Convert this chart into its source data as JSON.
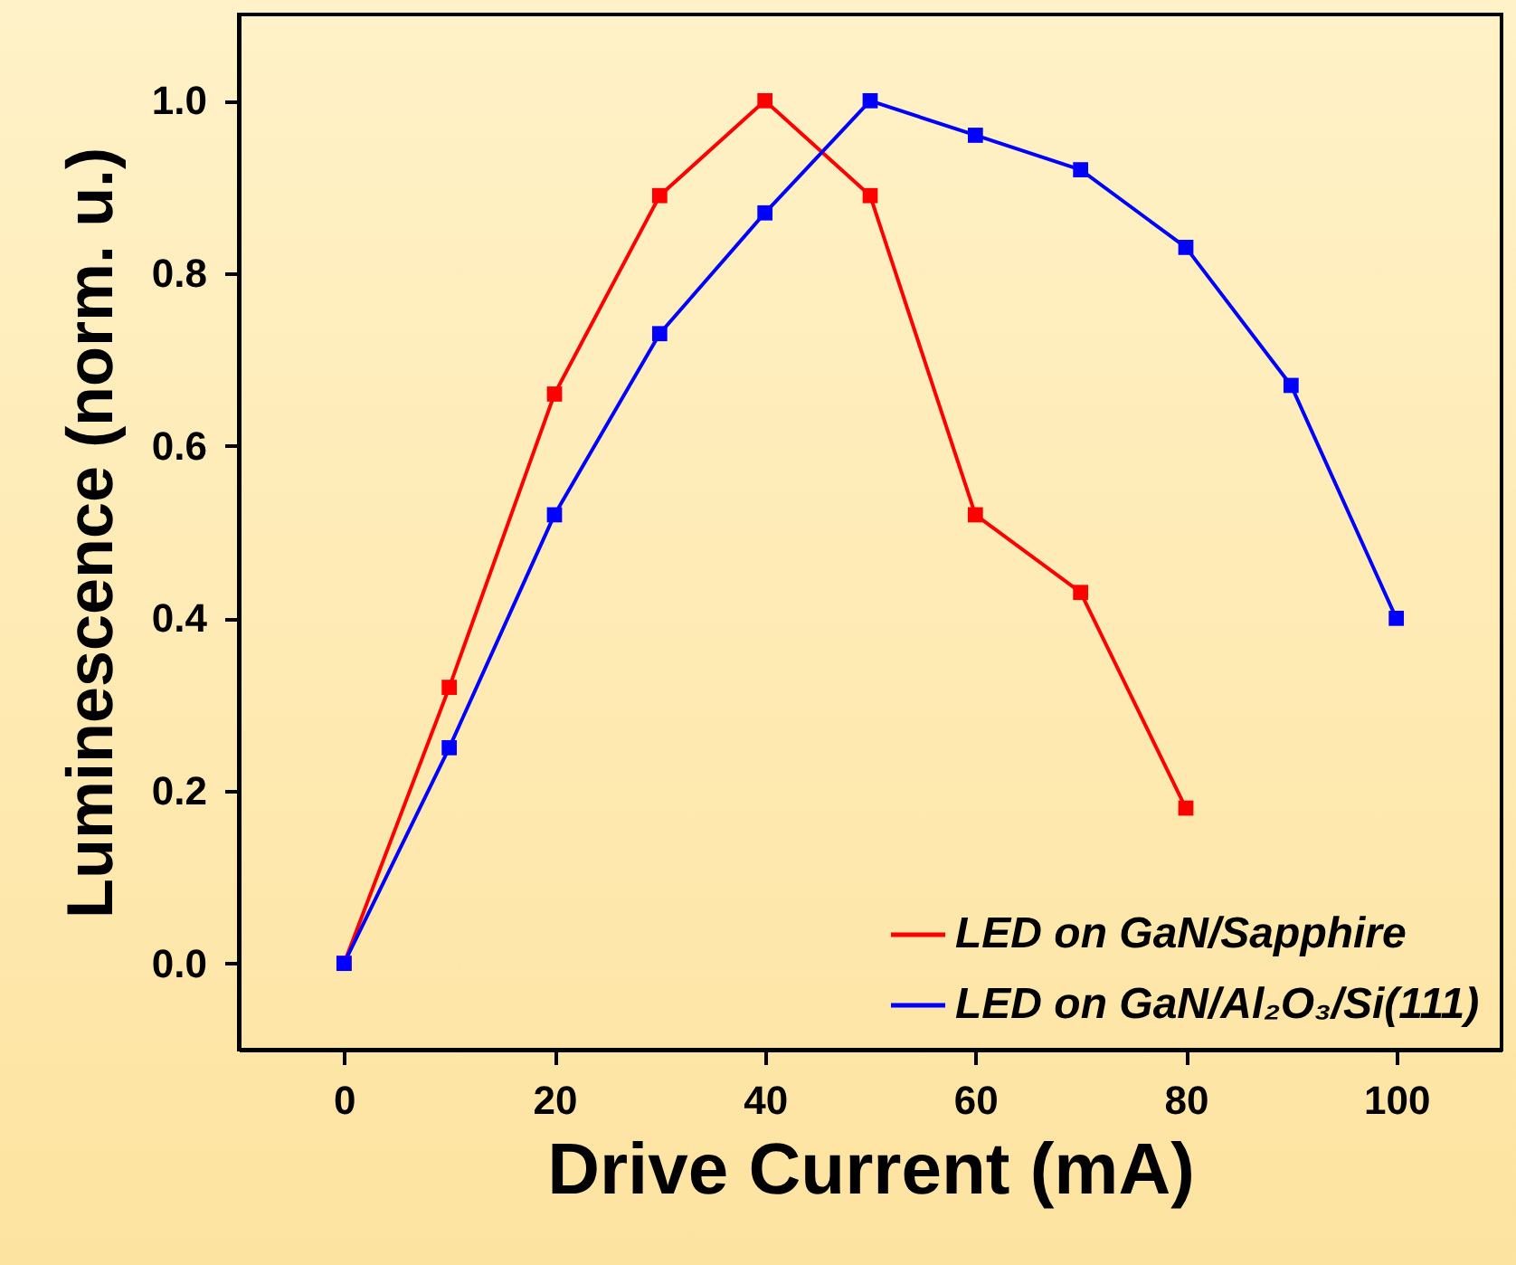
{
  "chart_data": {
    "type": "line",
    "xlabel": "Drive Current (mA)",
    "ylabel": "Luminescence (norm. u.)",
    "xlim": [
      -10,
      110
    ],
    "xticks": [
      0,
      20,
      40,
      60,
      80,
      100
    ],
    "ylim": [
      -0.1,
      1.1
    ],
    "yticks": [
      {
        "value": 0,
        "label": "0.0"
      },
      {
        "value": 0.2,
        "label": "0.2"
      },
      {
        "value": 0.4,
        "label": "0.4"
      },
      {
        "value": 0.6,
        "label": "0.6"
      },
      {
        "value": 0.8,
        "label": "0.8"
      },
      {
        "value": 1,
        "label": "1.0"
      }
    ],
    "marker": "square",
    "legend": "bottom right",
    "grid": false,
    "series": [
      {
        "name": "LED on GaN/Sapphire",
        "color": "#ff0000",
        "x": [
          0,
          10,
          20,
          30,
          40,
          50,
          60,
          70,
          80
        ],
        "values": [
          0,
          0.32,
          0.66,
          0.89,
          1.0,
          0.89,
          0.52,
          0.43,
          0.18
        ]
      },
      {
        "name": "LED on GaN/Al₂O₃/Si(111)",
        "color": "#0000ff",
        "x": [
          0,
          10,
          20,
          30,
          40,
          50,
          60,
          70,
          80,
          90,
          100
        ],
        "values": [
          0,
          0.25,
          0.52,
          0.73,
          0.87,
          1.0,
          0.96,
          0.92,
          0.83,
          0.67,
          0.4
        ]
      }
    ]
  }
}
